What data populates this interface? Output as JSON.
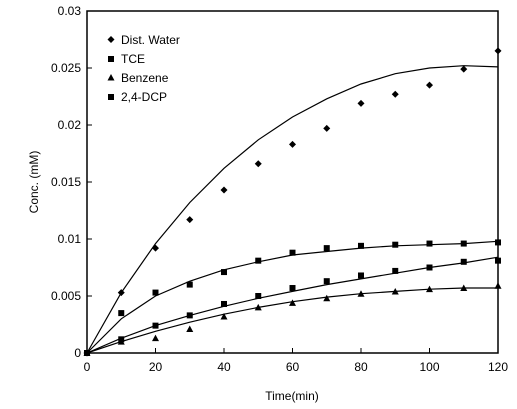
{
  "chart_data": {
    "type": "scatter",
    "xlabel": "Time(min)",
    "ylabel": "Conc. (mM)",
    "xlim": [
      0,
      120
    ],
    "ylim": [
      0,
      0.03
    ],
    "x_ticks": [
      "0",
      "20",
      "40",
      "60",
      "80",
      "100",
      "120"
    ],
    "y_ticks": [
      "0",
      "0.005",
      "0.01",
      "0.015",
      "0.02",
      "0.025",
      "0.03"
    ],
    "grid": false,
    "legend": "top-left",
    "series": [
      {
        "name": "Dist. Water",
        "marker": "diamond",
        "x": [
          0,
          10,
          20,
          30,
          40,
          50,
          60,
          70,
          80,
          90,
          100,
          110,
          120
        ],
        "y": [
          0,
          0.0053,
          0.0092,
          0.0117,
          0.0143,
          0.0166,
          0.0183,
          0.0197,
          0.0219,
          0.0227,
          0.0235,
          0.0249,
          0.0265
        ],
        "fit": [
          [
            0,
            0
          ],
          [
            10,
            0.0053
          ],
          [
            20,
            0.0096
          ],
          [
            30,
            0.0132
          ],
          [
            40,
            0.0162
          ],
          [
            50,
            0.0187
          ],
          [
            60,
            0.0207
          ],
          [
            70,
            0.0223
          ],
          [
            80,
            0.0236
          ],
          [
            90,
            0.0245
          ],
          [
            100,
            0.025
          ],
          [
            110,
            0.0252
          ],
          [
            120,
            0.0251
          ]
        ]
      },
      {
        "name": "TCE",
        "marker": "square",
        "x": [
          0,
          10,
          20,
          30,
          40,
          50,
          60,
          70,
          80,
          90,
          100,
          110,
          120
        ],
        "y": [
          0,
          0.0035,
          0.0053,
          0.006,
          0.0071,
          0.0081,
          0.0088,
          0.0092,
          0.0094,
          0.0095,
          0.0096,
          0.0096,
          0.0097
        ],
        "fit": [
          [
            0,
            0
          ],
          [
            10,
            0.003
          ],
          [
            20,
            0.005
          ],
          [
            30,
            0.0063
          ],
          [
            40,
            0.0073
          ],
          [
            50,
            0.008
          ],
          [
            60,
            0.0086
          ],
          [
            70,
            0.0089
          ],
          [
            80,
            0.0092
          ],
          [
            90,
            0.0094
          ],
          [
            100,
            0.0095
          ],
          [
            110,
            0.0096
          ],
          [
            120,
            0.0098
          ]
        ]
      },
      {
        "name": "Benzene",
        "marker": "triangle",
        "x": [
          0,
          10,
          20,
          30,
          40,
          50,
          60,
          70,
          80,
          90,
          100,
          110,
          120
        ],
        "y": [
          0,
          0.001,
          0.0013,
          0.0021,
          0.0032,
          0.004,
          0.0044,
          0.0048,
          0.0052,
          0.0054,
          0.0056,
          0.0057,
          0.0059
        ],
        "fit": [
          [
            0,
            0
          ],
          [
            10,
            0.001
          ],
          [
            20,
            0.0019
          ],
          [
            30,
            0.0027
          ],
          [
            40,
            0.0034
          ],
          [
            50,
            0.004
          ],
          [
            60,
            0.0045
          ],
          [
            70,
            0.0049
          ],
          [
            80,
            0.0052
          ],
          [
            90,
            0.0054
          ],
          [
            100,
            0.0056
          ],
          [
            110,
            0.0057
          ],
          [
            120,
            0.0057
          ]
        ]
      },
      {
        "name": "2,4-DCP",
        "marker": "square",
        "x": [
          0,
          10,
          20,
          30,
          40,
          50,
          60,
          70,
          80,
          90,
          100,
          110,
          120
        ],
        "y": [
          0,
          0.0012,
          0.0024,
          0.0033,
          0.0043,
          0.005,
          0.0057,
          0.0063,
          0.0068,
          0.0072,
          0.0075,
          0.008,
          0.0081
        ],
        "fit": [
          [
            0,
            0
          ],
          [
            10,
            0.0013
          ],
          [
            20,
            0.0024
          ],
          [
            30,
            0.0033
          ],
          [
            40,
            0.0041
          ],
          [
            50,
            0.0048
          ],
          [
            60,
            0.0054
          ],
          [
            70,
            0.006
          ],
          [
            80,
            0.0065
          ],
          [
            90,
            0.007
          ],
          [
            100,
            0.0075
          ],
          [
            110,
            0.0079
          ],
          [
            120,
            0.0084
          ]
        ]
      }
    ],
    "legend_labels": [
      "Dist. Water",
      "TCE",
      "Benzene",
      "2,4-DCP"
    ]
  }
}
